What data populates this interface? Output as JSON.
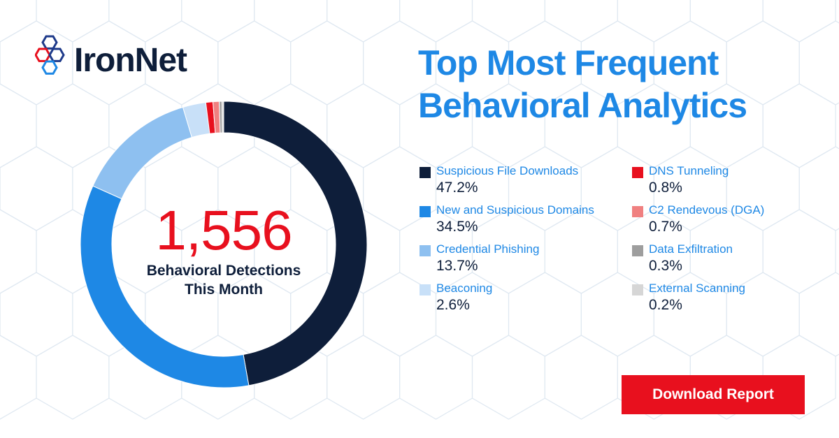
{
  "brand": {
    "name": "IronNet"
  },
  "title": {
    "line1": "Top Most Frequent",
    "line2": "Behavioral Analytics"
  },
  "cta": {
    "label": "Download Report"
  },
  "colors": {
    "navy": "#0e1e3a",
    "accent_blue": "#1e88e5",
    "red": "#e8101e"
  },
  "chart_data": {
    "type": "pie",
    "donut": true,
    "center_value": "1,556",
    "center_label_line1": "Behavioral Detections",
    "center_label_line2": "This Month",
    "legend_placement": "right",
    "categories": [
      "Suspicious File Downloads",
      "New and Suspicious Domains",
      "Credential Phishing",
      "Beaconing",
      "DNS Tunneling",
      "C2 Rendevous (DGA)",
      "Data Exfiltration",
      "External Scanning"
    ],
    "values": [
      47.2,
      34.5,
      13.7,
      2.6,
      0.8,
      0.7,
      0.3,
      0.2
    ],
    "value_labels": [
      "47.2%",
      "34.5%",
      "13.7%",
      "2.6%",
      "0.8%",
      "0.7%",
      "0.3%",
      "0.2%"
    ],
    "colors": [
      "#0e1e3a",
      "#1e88e5",
      "#8ec0f0",
      "#c8e0f8",
      "#e8101e",
      "#f08080",
      "#9e9e9e",
      "#d6d6d6"
    ]
  }
}
